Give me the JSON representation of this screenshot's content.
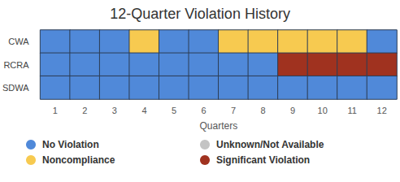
{
  "chart_data": {
    "type": "heatmap",
    "title": "12-Quarter Violation History",
    "x_label": "Quarters",
    "categories": [
      "1",
      "2",
      "3",
      "4",
      "5",
      "6",
      "7",
      "8",
      "9",
      "10",
      "11",
      "12"
    ],
    "rows": [
      "CWA",
      "RCRA",
      "SDWA"
    ],
    "statuses": [
      {
        "name": "No Violation",
        "color": "#5089d9"
      },
      {
        "name": "Unknown/Not Available",
        "color": "#c4c4c4"
      },
      {
        "name": "Noncompliance",
        "color": "#f7ca50"
      },
      {
        "name": "Significant Violation",
        "color": "#a0321f"
      }
    ],
    "cells": [
      [
        "No Violation",
        "No Violation",
        "No Violation",
        "Noncompliance",
        "No Violation",
        "No Violation",
        "Noncompliance",
        "Noncompliance",
        "Noncompliance",
        "Noncompliance",
        "Noncompliance",
        "No Violation"
      ],
      [
        "No Violation",
        "No Violation",
        "No Violation",
        "No Violation",
        "No Violation",
        "No Violation",
        "No Violation",
        "No Violation",
        "Significant Violation",
        "Significant Violation",
        "Significant Violation",
        "Significant Violation"
      ],
      [
        "No Violation",
        "No Violation",
        "No Violation",
        "No Violation",
        "No Violation",
        "No Violation",
        "No Violation",
        "No Violation",
        "No Violation",
        "No Violation",
        "No Violation",
        "No Violation"
      ]
    ],
    "legend": "bottom"
  }
}
